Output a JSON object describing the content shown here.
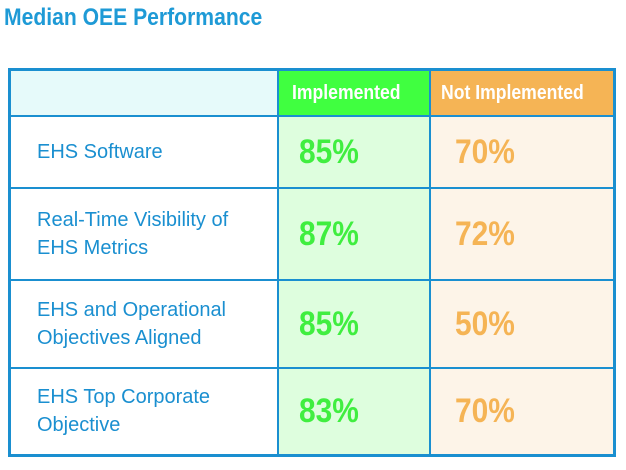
{
  "chart_data": {
    "type": "table",
    "title": "Median OEE Performance",
    "columns": [
      "",
      "Implemented",
      "Not Implemented"
    ],
    "rows": [
      {
        "label": "EHS Software",
        "implemented": "85%",
        "not_implemented": "70%"
      },
      {
        "label": "Real-Time Visibility of EHS Metrics",
        "implemented": "87%",
        "not_implemented": "72%"
      },
      {
        "label": "EHS and Operational Objectives Aligned",
        "implemented": "85%",
        "not_implemented": "50%"
      },
      {
        "label": "EHS Top Corporate Objective",
        "implemented": "83%",
        "not_implemented": "70%"
      }
    ],
    "colors": {
      "border": "#1a8fd0",
      "implemented": "#40ff40",
      "not_implemented": "#f5b455",
      "title": "#1e9ad6"
    }
  }
}
